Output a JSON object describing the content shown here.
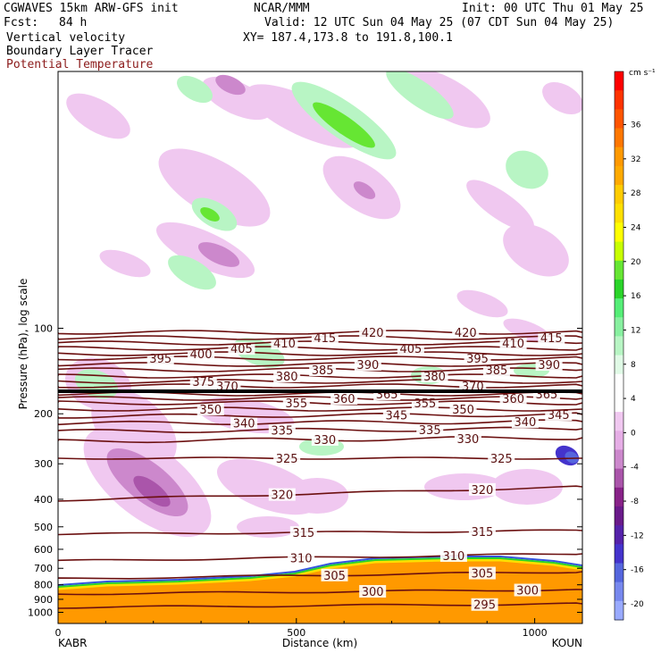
{
  "header": {
    "model": "CGWAVES 15km ARW-GFS init",
    "org": "NCAR/MMM",
    "init": "Init: 00 UTC Thu 01 May 25",
    "fcst_label": "Fcst:",
    "fcst_value": "84 h",
    "valid": "Valid: 12 UTC Sun 04 May 25 (07 CDT Sun 04 May 25)",
    "field1": "Vertical velocity",
    "field2": "Boundary Layer Tracer",
    "field3": "Potential Temperature",
    "xy": "XY= 187.4,173.8 to 191.8,100.1"
  },
  "colors": {
    "theta_contour": "#6b0f0f",
    "field3_text": "#8b1a1a",
    "tracer_orange": "#ff9900"
  },
  "chart_data": {
    "type": "heatmap",
    "title": "",
    "xlabel": "Distance (km)",
    "ylabel": "Pressure (hPa), log scale",
    "x_ticks": [
      0,
      500,
      1000
    ],
    "x_end_labels": [
      "KABR",
      "KOUN"
    ],
    "xlim": [
      0,
      1110
    ],
    "y_ticks": [
      100,
      200,
      300,
      400,
      500,
      600,
      700,
      800,
      900,
      1000
    ],
    "y_scale": "log",
    "grid": false,
    "colorbar": {
      "units": "cm s⁻¹",
      "labels": [
        36,
        32,
        28,
        24,
        20,
        16,
        12,
        8,
        4,
        0,
        -4,
        -8,
        -12,
        -16,
        -20
      ],
      "colors": [
        "#ff0000",
        "#ff3300",
        "#ff5500",
        "#ff7700",
        "#ff9900",
        "#ffaa00",
        "#ffcc00",
        "#ffe000",
        "#ffff00",
        "#c8ff00",
        "#66e633",
        "#2ad42a",
        "#55ee77",
        "#88f0a0",
        "#b8f5c4",
        "#e0fae6",
        "#ffffff",
        "#ffffff",
        "#f0c8f0",
        "#e6aee6",
        "#cc88cc",
        "#aa55aa",
        "#882288",
        "#6a1a8a",
        "#5522aa",
        "#4433cc",
        "#5566dd",
        "#7788ee",
        "#99aaff"
      ]
    },
    "theta_contours": [
      {
        "theta": 295,
        "label_km": [
          895
        ]
      },
      {
        "theta": 300,
        "label_km": [
          660,
          985
        ]
      },
      {
        "theta": 305,
        "label_km": [
          580,
          890
        ]
      },
      {
        "theta": 310,
        "label_km": [
          510,
          830
        ]
      },
      {
        "theta": 315,
        "label_km": [
          515,
          890
        ]
      },
      {
        "theta": 320,
        "label_km": [
          470,
          890
        ]
      },
      {
        "theta": 325,
        "label_km": [
          480,
          930
        ]
      },
      {
        "theta": 330,
        "label_km": [
          560,
          860
        ]
      },
      {
        "theta": 335,
        "label_km": [
          470,
          780
        ]
      },
      {
        "theta": 340,
        "label_km": [
          390,
          980
        ]
      },
      {
        "theta": 345,
        "label_km": [
          710,
          1050
        ]
      },
      {
        "theta": 350,
        "label_km": [
          320,
          850
        ]
      },
      {
        "theta": 355,
        "label_km": [
          500,
          770
        ]
      },
      {
        "theta": 360,
        "label_km": [
          600,
          955
        ]
      },
      {
        "theta": 365,
        "label_km": [
          690,
          1025
        ]
      },
      {
        "theta": 370,
        "label_km": [
          355,
          870
        ]
      },
      {
        "theta": 375,
        "label_km": [
          305
        ]
      },
      {
        "theta": 380,
        "label_km": [
          480,
          790
        ]
      },
      {
        "theta": 385,
        "label_km": [
          555,
          920
        ]
      },
      {
        "theta": 390,
        "label_km": [
          650,
          1030
        ]
      },
      {
        "theta": 395,
        "label_km": [
          215,
          880
        ]
      },
      {
        "theta": 400,
        "label_km": [
          300
        ]
      },
      {
        "theta": 405,
        "label_km": [
          385,
          740
        ]
      },
      {
        "theta": 410,
        "label_km": [
          475,
          955
        ]
      },
      {
        "theta": 415,
        "label_km": [
          560,
          1035
        ]
      },
      {
        "theta": 420,
        "label_km": [
          660,
          855
        ]
      }
    ]
  }
}
